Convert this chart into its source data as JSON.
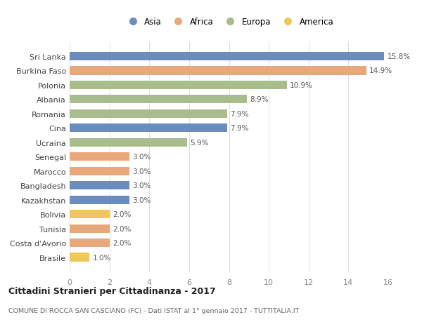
{
  "countries": [
    "Sri Lanka",
    "Burkina Faso",
    "Polonia",
    "Albania",
    "Romania",
    "Cina",
    "Ucraina",
    "Senegal",
    "Marocco",
    "Bangladesh",
    "Kazakhstan",
    "Bolivia",
    "Tunisia",
    "Costa d'Avorio",
    "Brasile"
  ],
  "values": [
    15.8,
    14.9,
    10.9,
    8.9,
    7.9,
    7.9,
    5.9,
    3.0,
    3.0,
    3.0,
    3.0,
    2.0,
    2.0,
    2.0,
    1.0
  ],
  "continents": [
    "Asia",
    "Africa",
    "Europa",
    "Europa",
    "Europa",
    "Asia",
    "Europa",
    "Africa",
    "Africa",
    "Asia",
    "Asia",
    "America",
    "Africa",
    "Africa",
    "America"
  ],
  "colors": {
    "Asia": "#6b8cbf",
    "Africa": "#e8a87c",
    "Europa": "#a8bc8c",
    "America": "#f0c85a"
  },
  "legend_order": [
    "Asia",
    "Africa",
    "Europa",
    "America"
  ],
  "title": "Cittadini Stranieri per Cittadinanza - 2017",
  "subtitle": "COMUNE DI ROCCA SAN CASCIANO (FC) - Dati ISTAT al 1° gennaio 2017 - TUTTITALIA.IT",
  "xlim": [
    0,
    16
  ],
  "xticks": [
    0,
    2,
    4,
    6,
    8,
    10,
    12,
    14,
    16
  ],
  "background_color": "#ffffff",
  "grid_color": "#dddddd",
  "bar_height": 0.6
}
